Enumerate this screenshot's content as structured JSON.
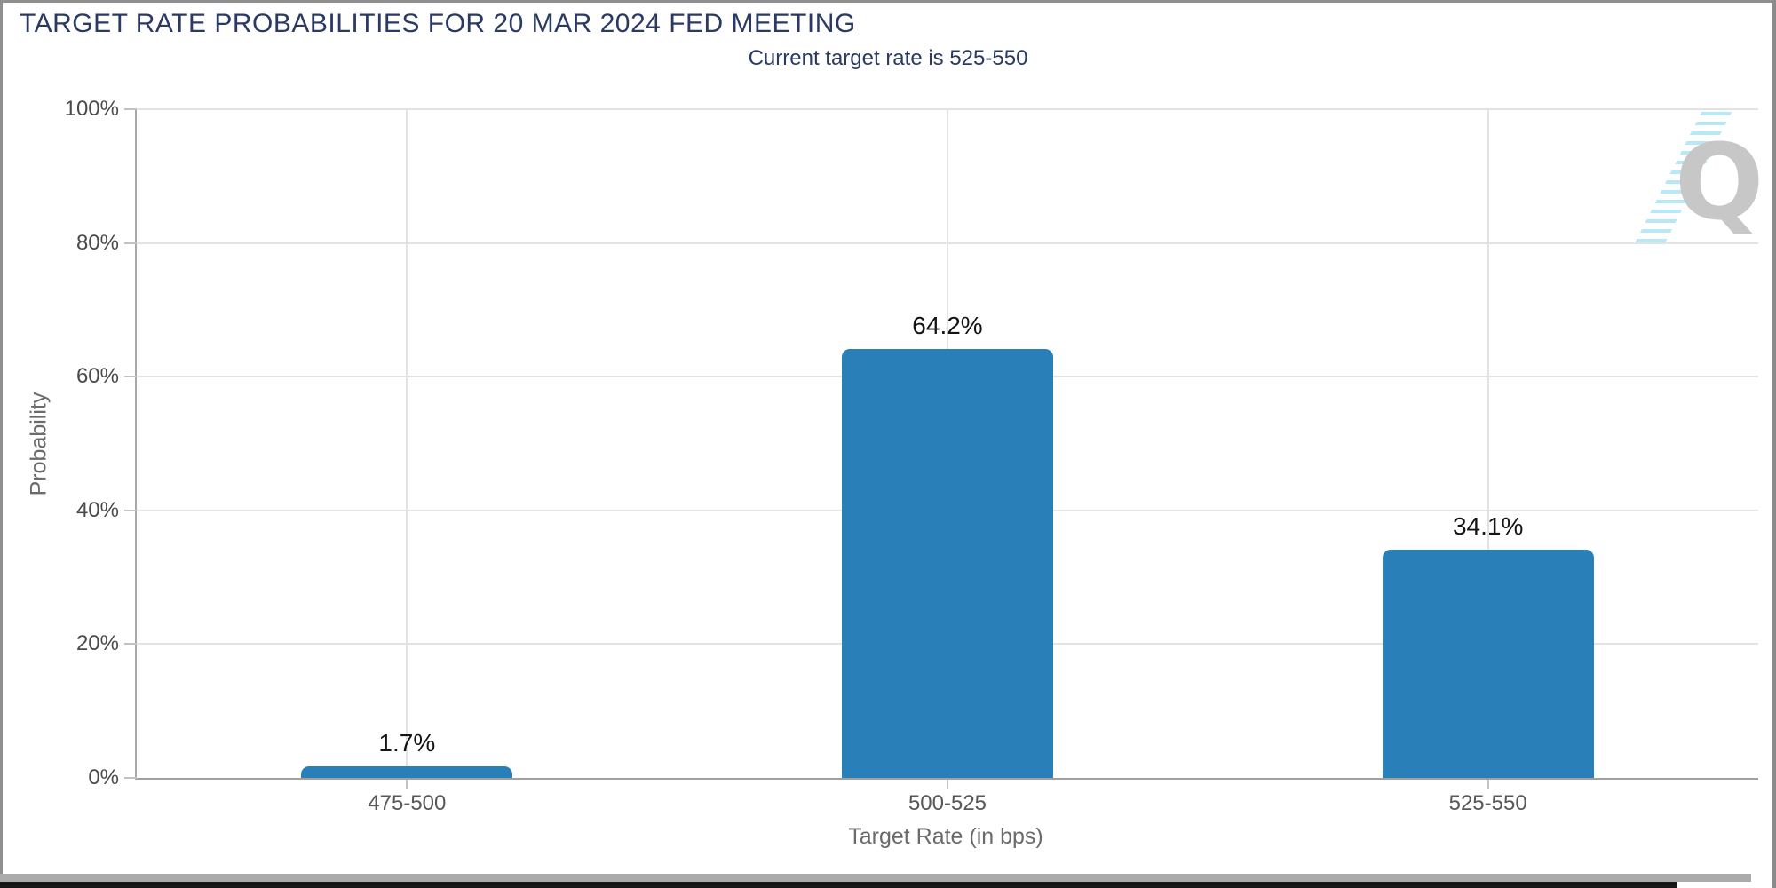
{
  "header": {
    "title": "TARGET RATE PROBABILITIES FOR 20 MAR 2024 FED MEETING",
    "subtitle": "Current target rate is 525-550"
  },
  "chart_data": {
    "type": "bar",
    "title": "TARGET RATE PROBABILITIES FOR 20 MAR 2024 FED MEETING",
    "subtitle": "Current target rate is 525-550",
    "categories": [
      "475-500",
      "500-525",
      "525-550"
    ],
    "values": [
      1.7,
      64.2,
      34.1
    ],
    "bar_labels": [
      "1.7%",
      "64.2%",
      "34.1%"
    ],
    "xlabel": "Target Rate (in bps)",
    "ylabel": "Probability",
    "ylim": [
      0,
      100
    ],
    "yticks": [
      0,
      20,
      40,
      60,
      80,
      100
    ],
    "ytick_labels": [
      "0%",
      "20%",
      "40%",
      "60%",
      "80%",
      "100%"
    ],
    "grid": true,
    "legend": "none",
    "bar_color": "#2980b9",
    "title_color": "#2b3a64",
    "axis_text_color": "#4a4a4a"
  },
  "watermark": {
    "letter": "Q",
    "letter_color": "#c7c7c7",
    "streak_color": "#b7e8f7"
  }
}
